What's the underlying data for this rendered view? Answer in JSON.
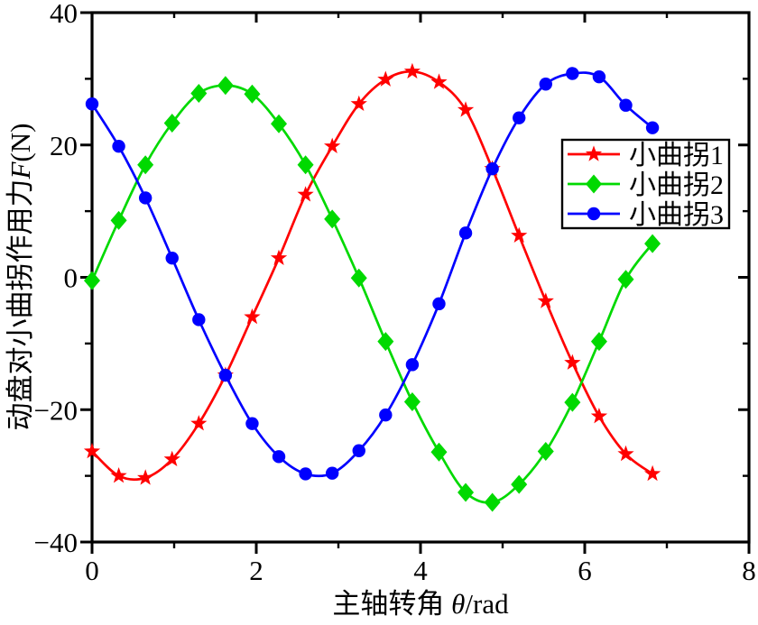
{
  "figure": {
    "background": "#ffffff",
    "text_color": "#000000",
    "frame_color": "#000000"
  },
  "axes": {
    "x": {
      "title_cn": "主轴转角 ",
      "title_sym": "θ",
      "title_unit": "/rad",
      "min": 0,
      "max": 8,
      "major_ticks": [
        0,
        2,
        4,
        6,
        8
      ],
      "minor_ticks": [
        1,
        3,
        5,
        7
      ],
      "tick_labels": [
        "0",
        "2",
        "4",
        "6",
        "8"
      ]
    },
    "y": {
      "title_cn": "动盘对小曲拐作用力",
      "title_sym": "F",
      "title_unit": "(N)",
      "min": -40,
      "max": 40,
      "major_ticks": [
        40,
        20,
        0,
        -20,
        -40
      ],
      "minor_ticks": [
        30,
        10,
        -10,
        -30
      ],
      "tick_labels": [
        "40",
        "20",
        "0",
        "−20",
        "−40"
      ]
    }
  },
  "legend": {
    "items": [
      {
        "label": "小曲拐1",
        "color": "#ff0000",
        "marker": "star"
      },
      {
        "label": "小曲拐2",
        "color": "#00d900",
        "marker": "diamond"
      },
      {
        "label": "小曲拐3",
        "color": "#0000ff",
        "marker": "circle"
      }
    ]
  },
  "chart_data": {
    "type": "line",
    "title": "",
    "xlabel": "主轴转角 θ/rad",
    "ylabel": "动盘对小曲拐作用力F(N)",
    "xlim": [
      0,
      8
    ],
    "ylim": [
      -40,
      40
    ],
    "grid": false,
    "legend_position": "right-middle-inside",
    "x": [
      0,
      0.325,
      0.65,
      0.975,
      1.3,
      1.625,
      1.95,
      2.275,
      2.6,
      2.925,
      3.25,
      3.575,
      3.9,
      4.225,
      4.55,
      4.875,
      5.2,
      5.525,
      5.85,
      6.175,
      6.5,
      6.825
    ],
    "series": [
      {
        "name": "小曲拐1",
        "color": "#ff0000",
        "marker": "star",
        "values": [
          -26.3,
          -30.0,
          -30.3,
          -27.5,
          -22.1,
          -14.8,
          -6.0,
          2.9,
          12.5,
          19.8,
          26.2,
          29.9,
          31.1,
          29.5,
          25.3,
          16.4,
          6.3,
          -3.6,
          -12.9,
          -21.0,
          -26.7,
          -29.7
        ]
      },
      {
        "name": "小曲拐2",
        "color": "#00d900",
        "marker": "diamond",
        "values": [
          -0.5,
          8.6,
          17.0,
          23.3,
          27.8,
          29.0,
          27.7,
          23.2,
          17.0,
          8.8,
          -0.1,
          -9.7,
          -18.8,
          -26.4,
          -32.5,
          -34.0,
          -31.3,
          -26.3,
          -18.9,
          -9.7,
          -0.3,
          5.1
        ]
      },
      {
        "name": "小曲拐3",
        "color": "#0000ff",
        "marker": "circle",
        "values": [
          26.2,
          19.8,
          12.0,
          2.9,
          -6.4,
          -14.8,
          -22.1,
          -27.1,
          -29.7,
          -29.6,
          -26.2,
          -20.8,
          -13.2,
          -4.0,
          6.7,
          16.4,
          24.1,
          29.2,
          30.8,
          30.3,
          26.0,
          22.6
        ]
      }
    ]
  }
}
